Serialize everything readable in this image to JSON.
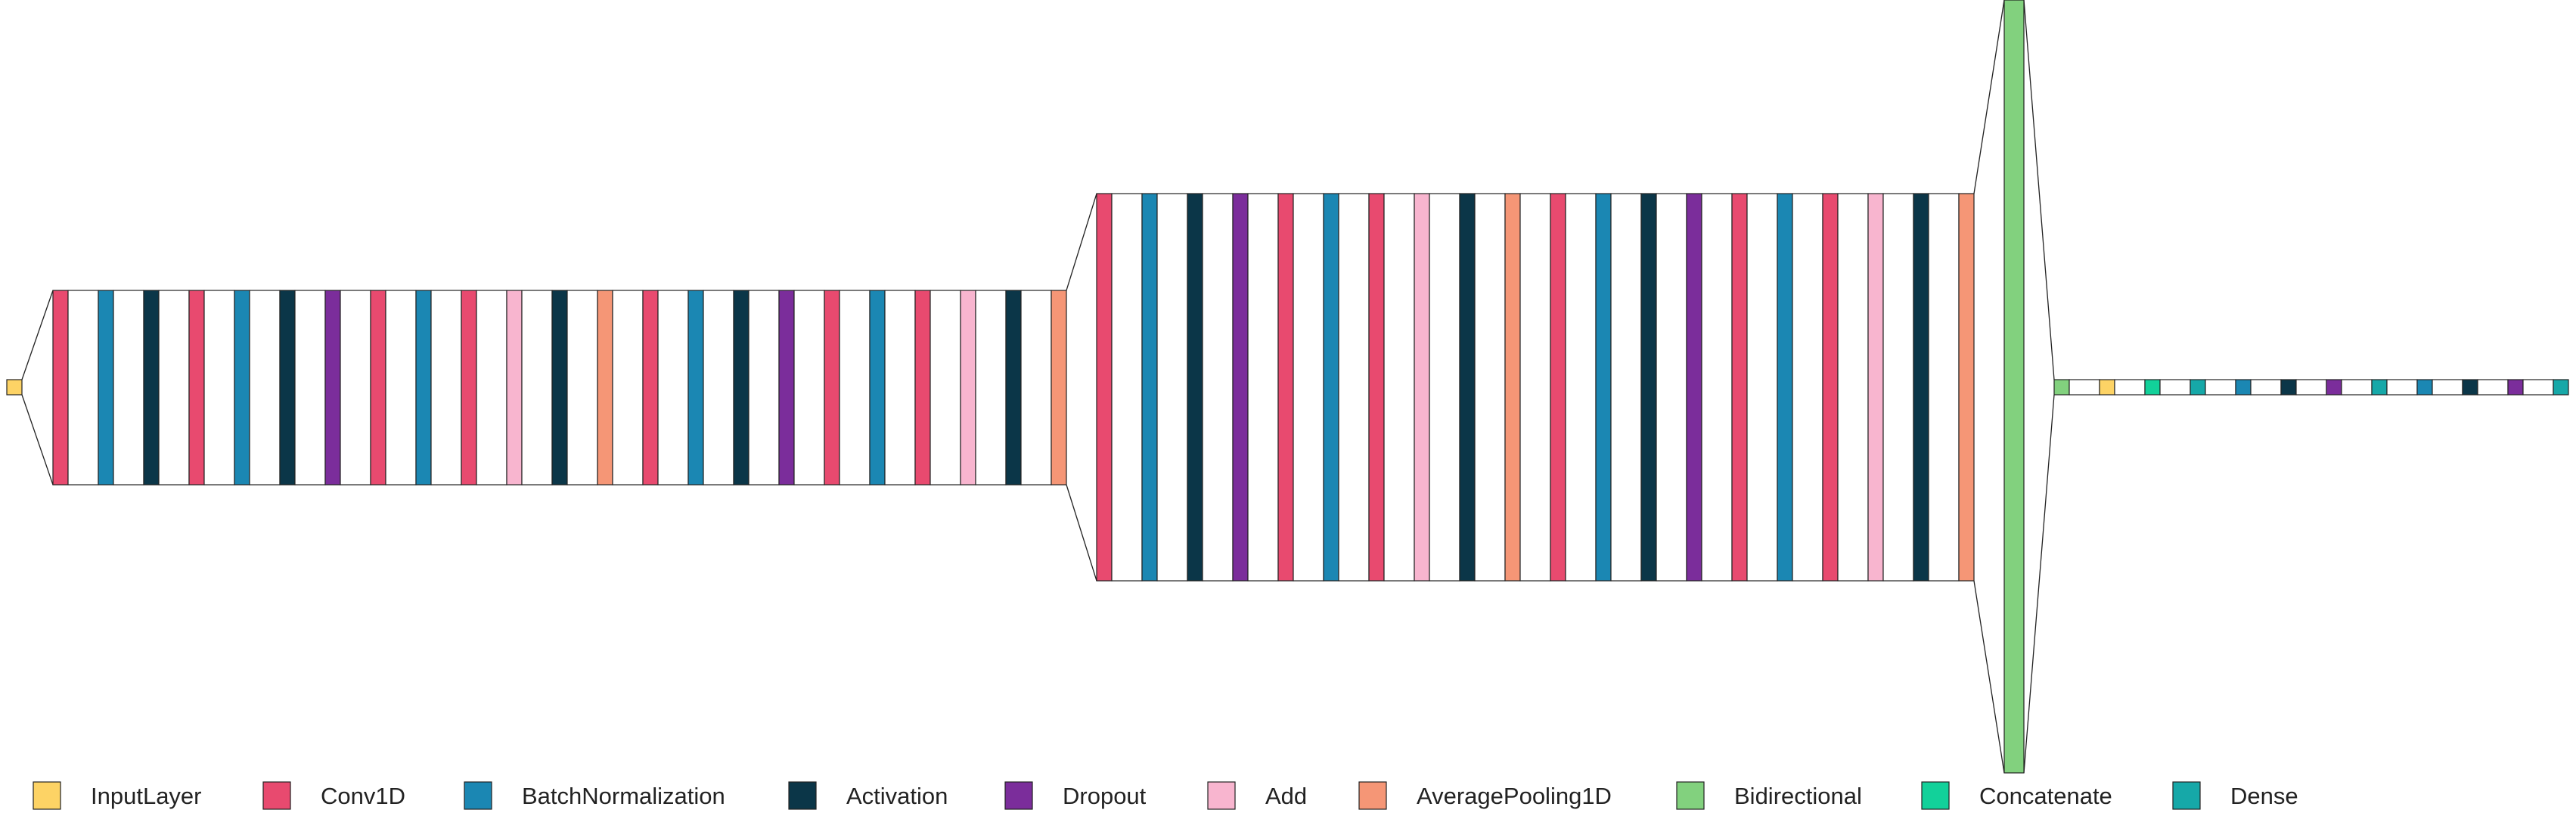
{
  "colors": {
    "InputLayer": "#fdd365",
    "Conv1D": "#e84a6f",
    "BatchNormalization": "#1b87b3",
    "Activation": "#0b3648",
    "Dropout": "#7b2d9b",
    "Add": "#f8b5cf",
    "AveragePooling1D": "#f59676",
    "Bidirectional": "#82d17e",
    "Concatenate": "#12d19a",
    "Dense": "#16a8a8",
    "Gap": "#ffffff",
    "Stroke": "#222222"
  },
  "groups": [
    {
      "name": "input-stage",
      "layers": [
        "InputLayer"
      ]
    },
    {
      "name": "stage-1",
      "layers": [
        "Conv1D",
        "BatchNormalization",
        "Activation",
        "Conv1D",
        "BatchNormalization",
        "Activation",
        "Dropout",
        "Conv1D",
        "BatchNormalization",
        "Conv1D",
        "Add",
        "Activation",
        "AveragePooling1D",
        "Conv1D",
        "BatchNormalization",
        "Activation",
        "Dropout",
        "Conv1D",
        "BatchNormalization",
        "Conv1D",
        "Add",
        "Activation",
        "AveragePooling1D"
      ]
    },
    {
      "name": "stage-2",
      "layers": [
        "Conv1D",
        "BatchNormalization",
        "Activation",
        "Dropout",
        "Conv1D",
        "BatchNormalization",
        "Conv1D",
        "Add",
        "Activation",
        "AveragePooling1D",
        "Conv1D",
        "BatchNormalization",
        "Activation",
        "Dropout",
        "Conv1D",
        "BatchNormalization",
        "Conv1D",
        "Add",
        "Activation",
        "AveragePooling1D"
      ]
    },
    {
      "name": "recurrent-stage",
      "layers": [
        "Bidirectional"
      ]
    },
    {
      "name": "head-stage",
      "layers": [
        "Bidirectional",
        "InputLayer",
        "Concatenate",
        "Dense",
        "BatchNormalization",
        "Activation",
        "Dropout",
        "Dense",
        "BatchNormalization",
        "Activation",
        "Dropout",
        "Dense"
      ]
    }
  ],
  "legend": [
    {
      "label": "InputLayer",
      "type": "InputLayer"
    },
    {
      "label": "Conv1D",
      "type": "Conv1D"
    },
    {
      "label": "BatchNormalization",
      "type": "BatchNormalization"
    },
    {
      "label": "Activation",
      "type": "Activation"
    },
    {
      "label": "Dropout",
      "type": "Dropout"
    },
    {
      "label": "Add",
      "type": "Add"
    },
    {
      "label": "AveragePooling1D",
      "type": "AveragePooling1D"
    },
    {
      "label": "Bidirectional",
      "type": "Bidirectional"
    },
    {
      "label": "Concatenate",
      "type": "Concatenate"
    },
    {
      "label": "Dense",
      "type": "Dense"
    }
  ]
}
